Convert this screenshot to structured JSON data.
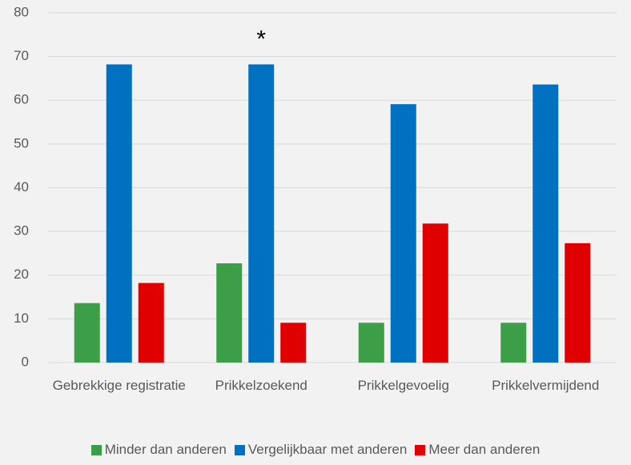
{
  "chart_data": {
    "type": "bar",
    "categories": [
      "Gebrekkige registratie",
      "Prikkelzoekend",
      "Prikkelgevoelig",
      "Prikkelvermijdend"
    ],
    "series": [
      {
        "name": "Minder dan anderen",
        "color": "#3c9e47",
        "values": [
          13.6,
          22.7,
          9.1,
          9.1
        ]
      },
      {
        "name": "Vergelijkbaar met anderen",
        "color": "#0070c0",
        "values": [
          68.2,
          68.2,
          59.1,
          63.6
        ]
      },
      {
        "name": "Meer dan anderen",
        "color": "#e00000",
        "values": [
          18.2,
          9.1,
          31.8,
          27.3
        ]
      }
    ],
    "annotations": [
      {
        "text": "*",
        "category": 1,
        "series": 1
      }
    ],
    "ylim": [
      0,
      80
    ],
    "yticks": [
      0,
      10,
      20,
      30,
      40,
      50,
      60,
      70,
      80
    ],
    "grid": true,
    "legend": "bottom"
  }
}
